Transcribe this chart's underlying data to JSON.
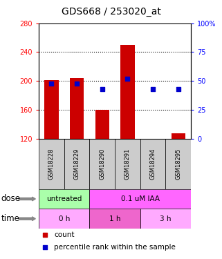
{
  "title": "GDS668 / 253020_at",
  "samples": [
    "GSM18228",
    "GSM18229",
    "GSM18290",
    "GSM18291",
    "GSM18294",
    "GSM18295"
  ],
  "counts": [
    201,
    204,
    160,
    250,
    120,
    127
  ],
  "percentiles": [
    48,
    48,
    43,
    52,
    43,
    43
  ],
  "ylim_left": [
    120,
    280
  ],
  "ylim_right": [
    0,
    100
  ],
  "yticks_left": [
    120,
    160,
    200,
    240,
    280
  ],
  "yticks_right": [
    0,
    25,
    50,
    75,
    100
  ],
  "bar_color": "#cc0000",
  "dot_color": "#0000cc",
  "bar_bottom": 120,
  "dose_labels": [
    {
      "text": "untreated",
      "start": 0,
      "end": 2,
      "color": "#aaffaa"
    },
    {
      "text": "0.1 uM IAA",
      "start": 2,
      "end": 6,
      "color": "#ff66ff"
    }
  ],
  "time_labels": [
    {
      "text": "0 h",
      "start": 0,
      "end": 2,
      "color": "#ffaaff"
    },
    {
      "text": "1 h",
      "start": 2,
      "end": 4,
      "color": "#ee66cc"
    },
    {
      "text": "3 h",
      "start": 4,
      "end": 6,
      "color": "#ffaaff"
    }
  ],
  "sample_bg_color": "#cccccc",
  "xlabel_dose": "dose",
  "xlabel_time": "time",
  "legend_count": "count",
  "legend_percentile": "percentile rank within the sample",
  "title_fontsize": 10,
  "tick_fontsize": 7,
  "annot_fontsize": 8
}
